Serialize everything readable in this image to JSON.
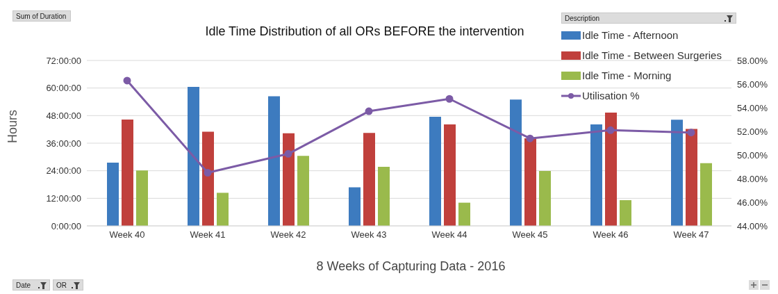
{
  "chart_data": {
    "type": "bar",
    "title": "Idle Time Distribution of all ORs BEFORE the intervention",
    "xlabel": "8 Weeks of Capturing Data - 2016",
    "ylabel": "Hours",
    "legend_title": "Description",
    "annotations": [
      "Sum of Duration",
      "Date",
      "OR"
    ],
    "categories": [
      "Week 40",
      "Week 41",
      "Week 42",
      "Week 43",
      "Week 44",
      "Week 45",
      "Week 46",
      "Week 47"
    ],
    "series": [
      {
        "name": "Idle Time - Afternoon",
        "color": "#3d7bbf",
        "values": [
          27.5,
          60.5,
          56.4,
          16.8,
          47.5,
          55,
          44.2,
          46.2
        ]
      },
      {
        "name": "Idle Time - Between Surgeries",
        "color": "#c0403c",
        "values": [
          46.3,
          41,
          40.3,
          40.5,
          44.2,
          38.1,
          49.3,
          42.2
        ]
      },
      {
        "name": "Idle Time - Morning",
        "color": "#9aba4c",
        "values": [
          24.1,
          14.4,
          30.5,
          25.7,
          10.1,
          23.9,
          11.2,
          27.3
        ]
      },
      {
        "name": "Utilisation %",
        "type": "line",
        "axis": "y2",
        "color": "#7c5ba6",
        "marker": "circle",
        "values": [
          56.3,
          48.5,
          50.1,
          53.7,
          54.75,
          51.4,
          52.1,
          51.9
        ]
      }
    ],
    "ylim": [
      0,
      72
    ],
    "yticks": [
      {
        "value": 0,
        "label": "0:00:00"
      },
      {
        "value": 12,
        "label": "12:00:00"
      },
      {
        "value": 24,
        "label": "24:00:00"
      },
      {
        "value": 36,
        "label": "36:00:00"
      },
      {
        "value": 48,
        "label": "48:00:00"
      },
      {
        "value": 60,
        "label": "60:00:00"
      },
      {
        "value": 72,
        "label": "72:00:00"
      }
    ],
    "y2lim": [
      44,
      58
    ],
    "y2ticks": [
      {
        "value": 44,
        "label": "44.00%"
      },
      {
        "value": 46,
        "label": "46.00%"
      },
      {
        "value": 48,
        "label": "48.00%"
      },
      {
        "value": 50,
        "label": "50.00%"
      },
      {
        "value": 52,
        "label": "52.00%"
      },
      {
        "value": 54,
        "label": "54.00%"
      },
      {
        "value": 56,
        "label": "56.00%"
      },
      {
        "value": 58,
        "label": "58.00%"
      }
    ],
    "grid": "y",
    "legend": "top right"
  }
}
